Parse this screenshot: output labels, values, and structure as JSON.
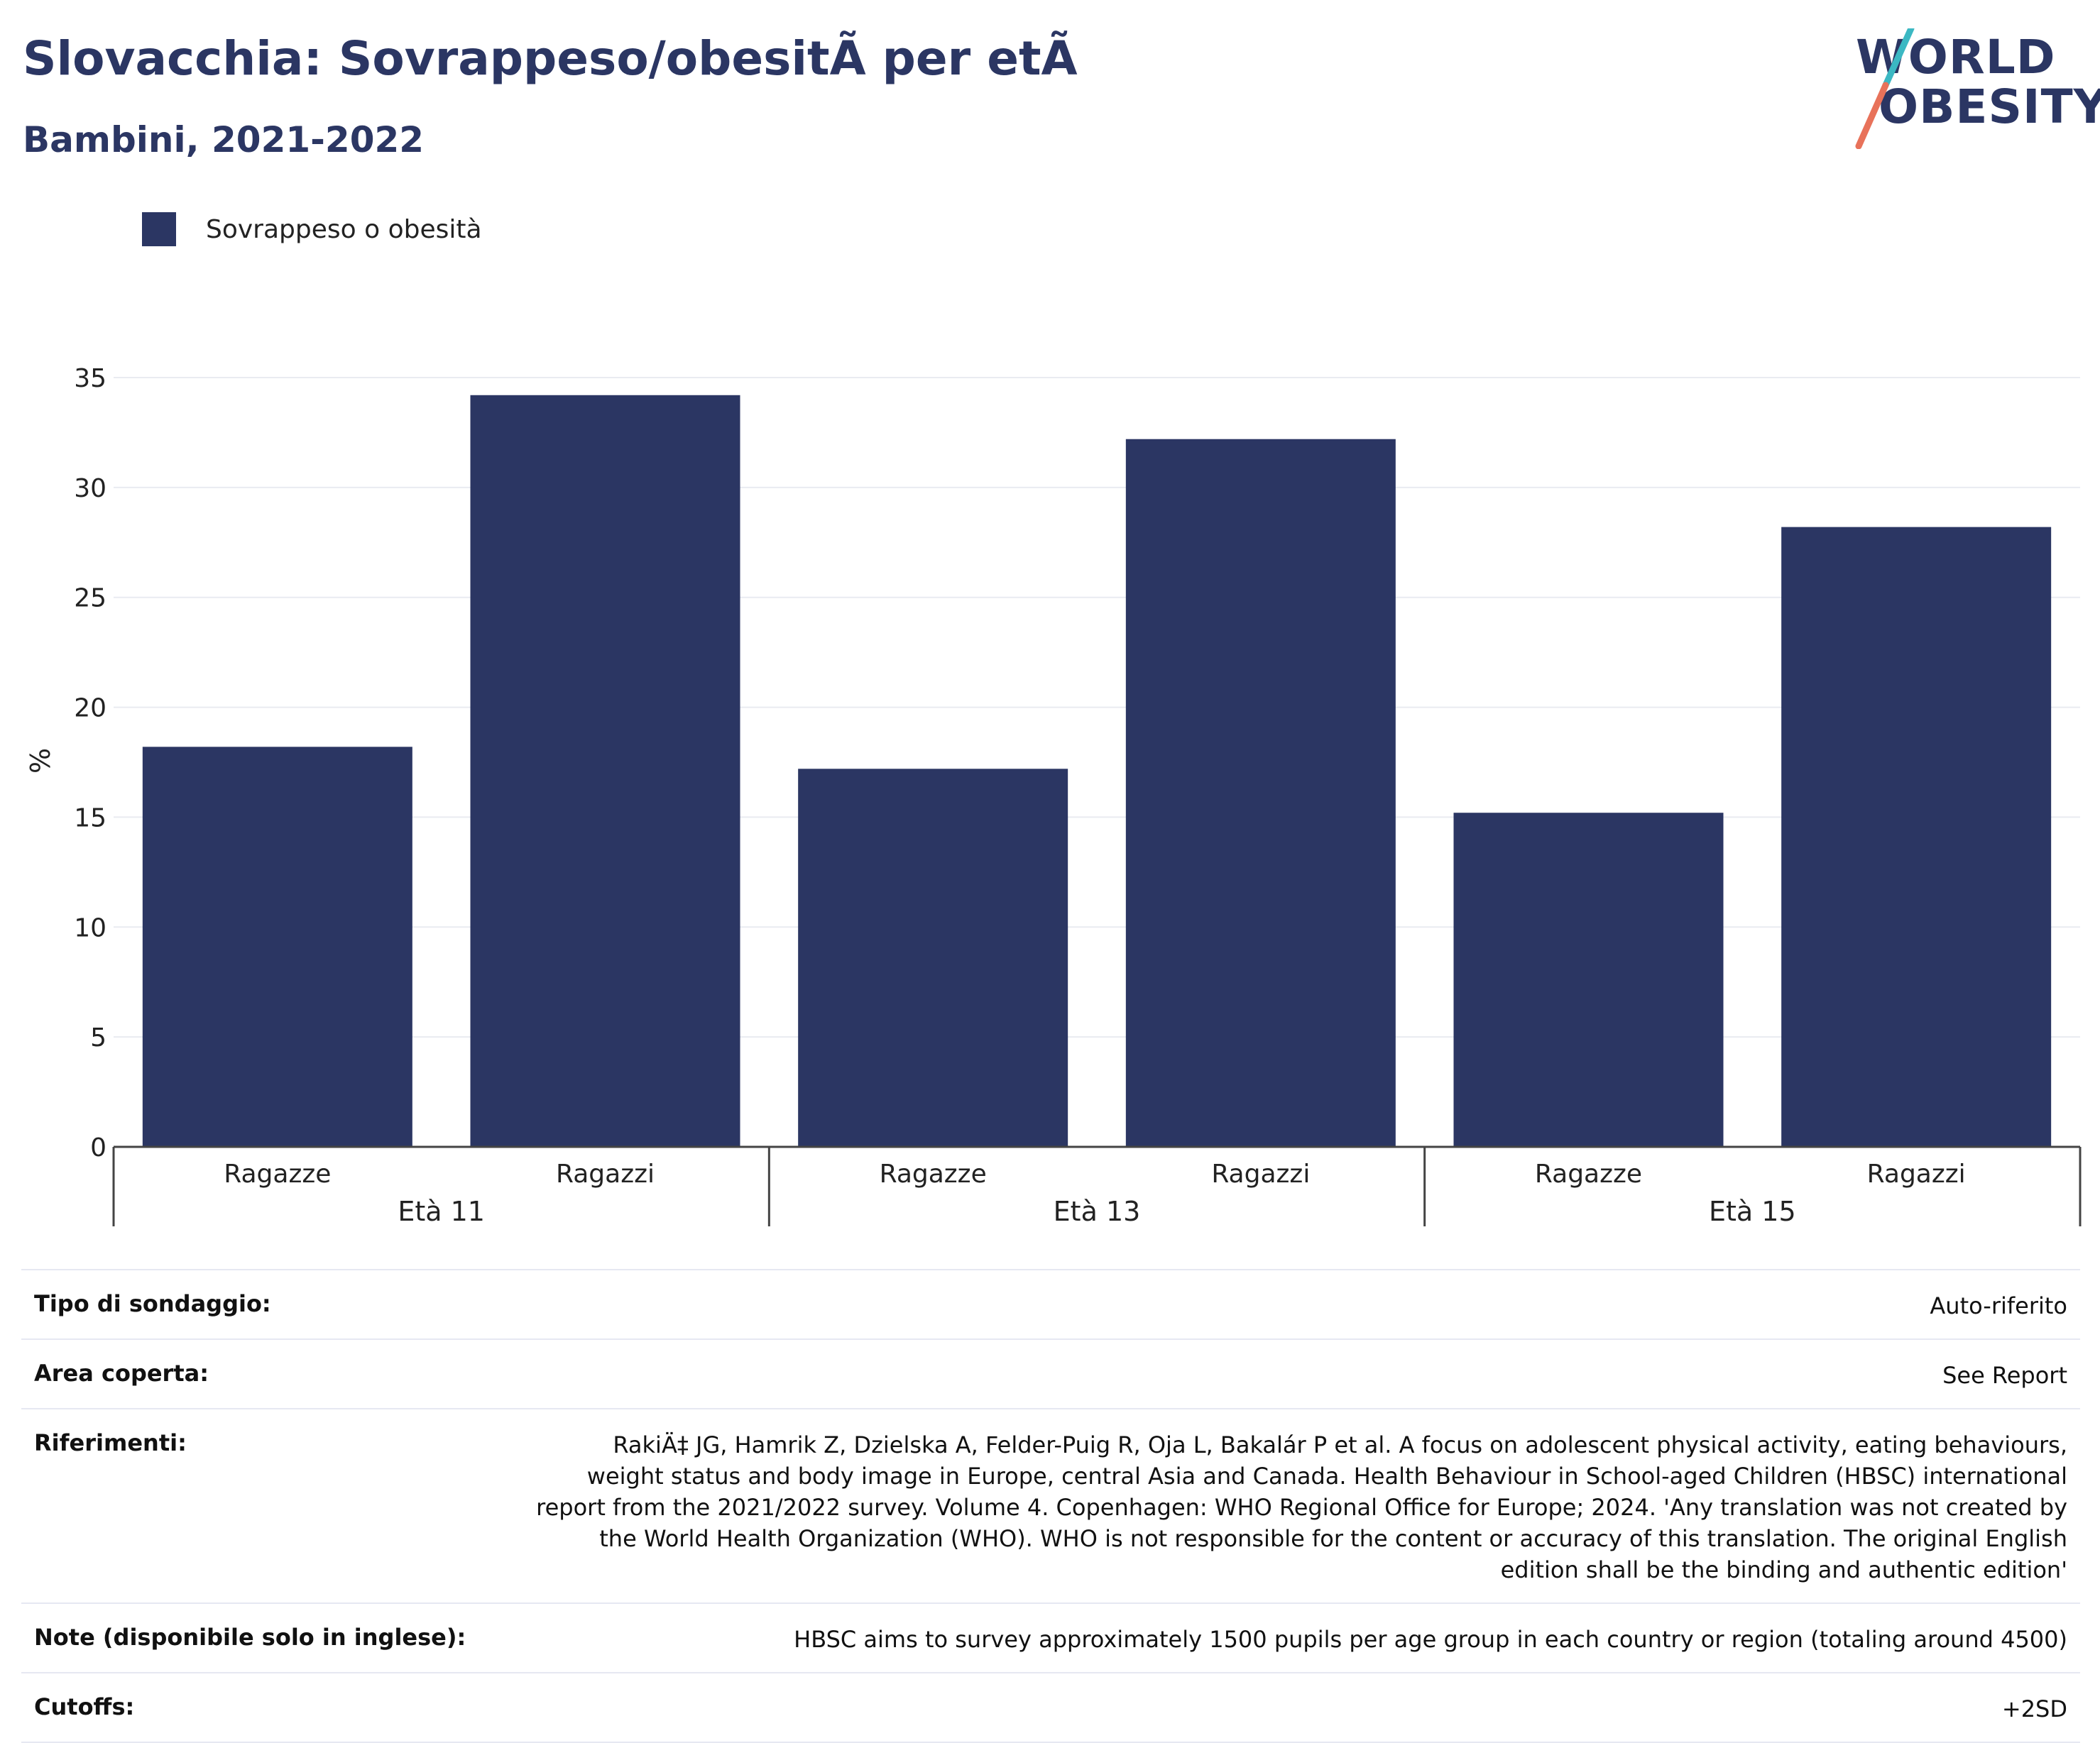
{
  "header": {
    "title": "Slovacchia: Sovrappeso/obesitÃ  per etÃ",
    "subtitle": "Bambini, 2021-2022"
  },
  "logo": {
    "line1": "WORLD",
    "line2": "OBESITY",
    "accent_colors": [
      "#3bb8c3",
      "#e8725a"
    ]
  },
  "chart_data": {
    "type": "bar",
    "ylabel": "%",
    "ylim": [
      0,
      35
    ],
    "yticks": [
      0,
      5,
      10,
      15,
      20,
      25,
      30,
      35
    ],
    "grid": true,
    "legend": {
      "position": "top-left"
    },
    "groups": [
      {
        "label": "Età 11",
        "categories": [
          "Ragazze",
          "Ragazzi"
        ],
        "values": [
          18.2,
          34.2
        ]
      },
      {
        "label": "Età 13",
        "categories": [
          "Ragazze",
          "Ragazzi"
        ],
        "values": [
          17.2,
          32.2
        ]
      },
      {
        "label": "Età 15",
        "categories": [
          "Ragazze",
          "Ragazzi"
        ],
        "values": [
          15.2,
          28.2
        ]
      }
    ],
    "series": [
      {
        "name": "Sovrappeso o obesità",
        "color": "#2b3663"
      }
    ]
  },
  "info": [
    {
      "label": "Tipo di sondaggio:",
      "value": "Auto-riferito"
    },
    {
      "label": "Area coperta:",
      "value": "See Report"
    },
    {
      "label": "Riferimenti:",
      "value": "RakiÄ‡ JG, Hamrik Z, Dzielska A, Felder-Puig R, Oja L, Bakalár P et al. A focus on adolescent physical activity, eating behaviours, weight status and body image in Europe, central Asia and Canada. Health Behaviour in School-aged Children (HBSC) international report from the 2021/2022 survey. Volume 4. Copenhagen: WHO Regional Office for Europe; 2024. 'Any translation was not created by the World Health Organization (WHO). WHO is not responsible for the content or accuracy of this translation. The original English edition shall be the binding and authentic edition'"
    },
    {
      "label": "Note (disponibile solo in inglese):",
      "value": "HBSC aims to survey approximately 1500 pupils per age group in each country or region (totaling around 4500)"
    },
    {
      "label": "Cutoffs:",
      "value": "+2SD"
    }
  ]
}
